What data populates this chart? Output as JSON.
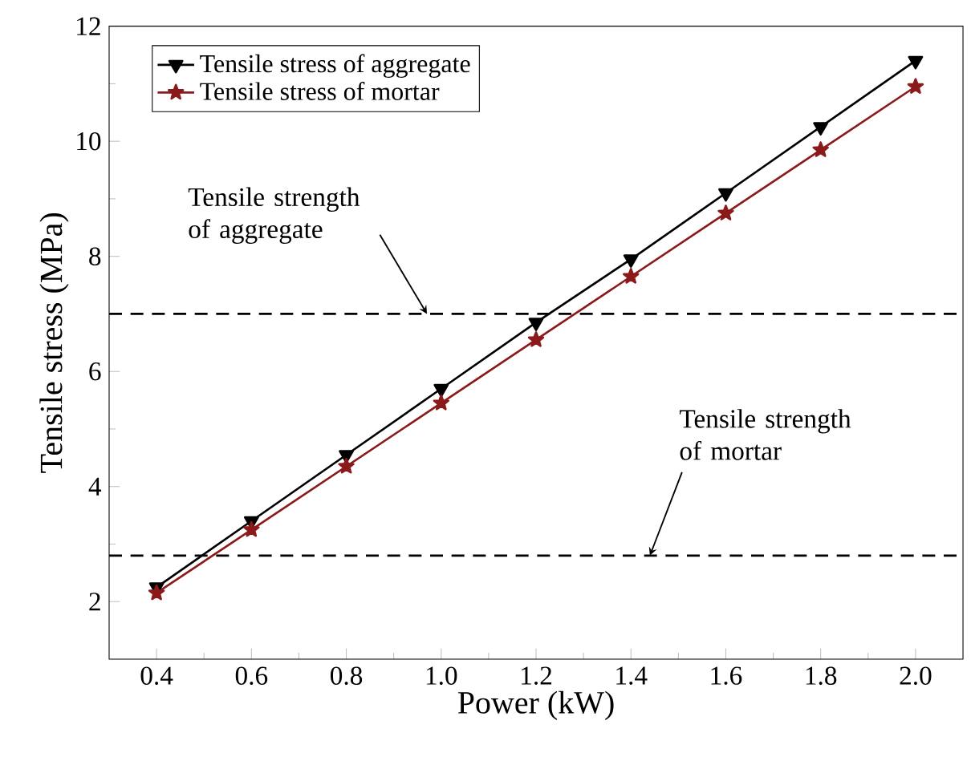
{
  "chart_data": {
    "type": "line",
    "xlabel": "Power (kW)",
    "ylabel": "Tensile stress (MPa)",
    "x": [
      0.4,
      0.6,
      0.8,
      1.0,
      1.2,
      1.4,
      1.6,
      1.8,
      2.0
    ],
    "series": [
      {
        "name": "Tensile stress of aggregate",
        "color": "#000000",
        "marker": "triangle",
        "values": [
          2.25,
          3.4,
          4.55,
          5.7,
          6.85,
          7.95,
          9.1,
          10.25,
          11.4
        ]
      },
      {
        "name": "Tensile stress of mortar",
        "color": "#8b1a1a",
        "marker": "star",
        "values": [
          2.15,
          3.25,
          4.35,
          5.45,
          6.55,
          7.65,
          8.75,
          9.85,
          10.95
        ]
      }
    ],
    "xlim": [
      0.3,
      2.1
    ],
    "ylim": [
      1,
      12
    ],
    "xticks": [
      0.4,
      0.6,
      0.8,
      {
        "value": 1.0,
        "label": "1.0"
      },
      1.2,
      1.4,
      1.6,
      1.8,
      {
        "value": 2.0,
        "label": "2.0"
      }
    ],
    "yticks": [
      2,
      4,
      6,
      8,
      10,
      12
    ],
    "ref_lines": [
      {
        "axis": "y",
        "value": 7,
        "color": "#000000",
        "line_style": "dashed"
      },
      {
        "axis": "y",
        "value": 2.8,
        "color": "#000000",
        "line_style": "dashed"
      }
    ],
    "annotations": [
      {
        "text": "Tensile strength of aggregate",
        "x": 0.97,
        "y": 7
      },
      {
        "text": "Tensile strength of mortar",
        "x": 1.44,
        "y": 2.8
      }
    ],
    "legend": "top left",
    "grid": false,
    "line_style": "solid"
  }
}
